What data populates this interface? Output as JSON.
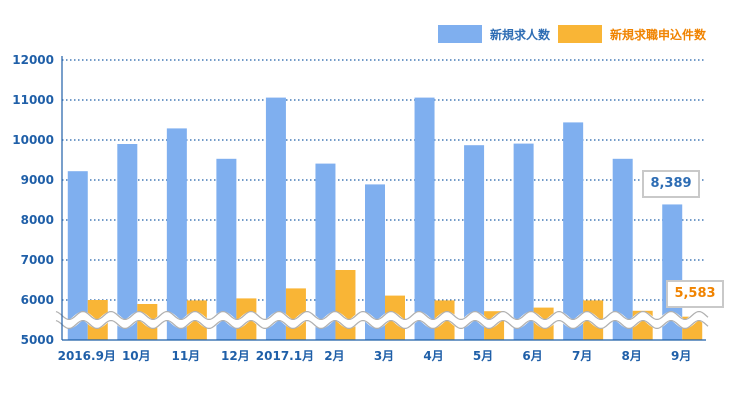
{
  "chart_data": {
    "type": "bar",
    "categories": [
      "2016.9月",
      "10月",
      "11月",
      "12月",
      "2017.1月",
      "2月",
      "3月",
      "4月",
      "5月",
      "6月",
      "7月",
      "8月",
      "9月"
    ],
    "series": [
      {
        "name": "新規求人数",
        "color": "#7fafef",
        "values": [
          9220,
          9900,
          10290,
          9530,
          11060,
          9410,
          8890,
          11060,
          9870,
          9910,
          10440,
          9530,
          8389
        ]
      },
      {
        "name": "新規求職申込件数",
        "color": "#f9b536",
        "values": [
          6000,
          5900,
          5990,
          6040,
          6290,
          6750,
          6110,
          5990,
          5720,
          5810,
          5990,
          5730,
          5583
        ]
      }
    ],
    "yticks": [
      5000,
      6000,
      7000,
      8000,
      9000,
      10000,
      11000,
      12000
    ],
    "ylim": [
      5000,
      12000
    ],
    "y_axis_break": true,
    "grid": "horizontal dotted",
    "legend_position": "top-right",
    "callouts": [
      {
        "series": 0,
        "index": 12,
        "text": "8,389",
        "color": "#2e6db4"
      },
      {
        "series": 1,
        "index": 12,
        "text": "5,583",
        "color": "#f08300"
      }
    ],
    "axis_color": "#1f5fa8"
  }
}
